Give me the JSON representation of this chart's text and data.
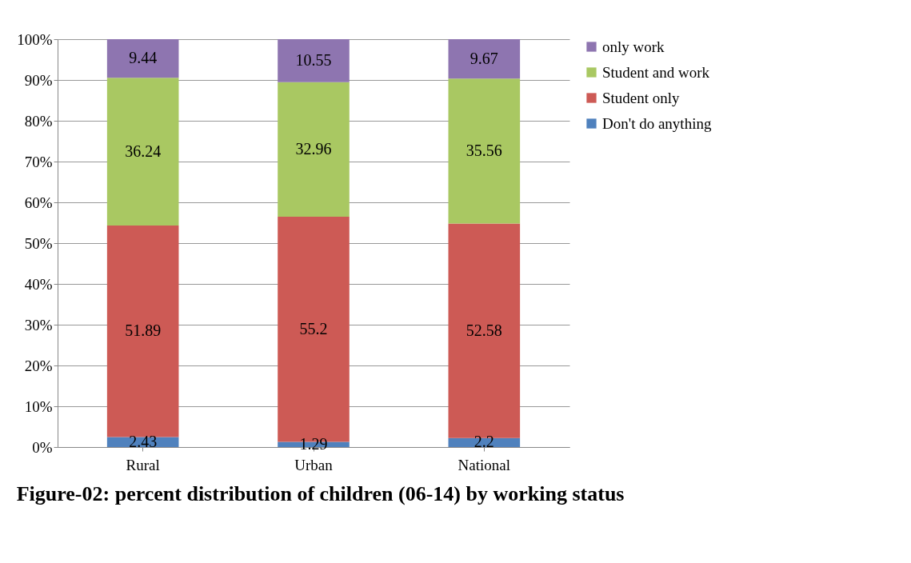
{
  "chart_data": {
    "type": "bar",
    "stacked": true,
    "title": "Figure-02:  percent distribution of children (06-14) by working status",
    "categories": [
      "Rural",
      "Urban",
      "National"
    ],
    "series": [
      {
        "name": "Don't do anything",
        "color": "#4f81bd",
        "values": [
          2.43,
          1.29,
          2.2
        ]
      },
      {
        "name": "Student only",
        "color": "#cd5a55",
        "values": [
          51.89,
          55.2,
          52.58
        ]
      },
      {
        "name": "Student and work",
        "color": "#a9c862",
        "values": [
          36.24,
          32.96,
          35.56
        ]
      },
      {
        "name": "only work",
        "color": "#8e75b0",
        "values": [
          9.44,
          10.55,
          9.67
        ]
      }
    ],
    "ylim": [
      0,
      100
    ],
    "yticks": [
      {
        "value": 0,
        "label": "0%"
      },
      {
        "value": 10,
        "label": "10%"
      },
      {
        "value": 20,
        "label": "20%"
      },
      {
        "value": 30,
        "label": "30%"
      },
      {
        "value": 40,
        "label": "40%"
      },
      {
        "value": 50,
        "label": "50%"
      },
      {
        "value": 60,
        "label": "60%"
      },
      {
        "value": 70,
        "label": "70%"
      },
      {
        "value": 80,
        "label": "80%"
      },
      {
        "value": 90,
        "label": "90%"
      },
      {
        "value": 100,
        "label": "100%"
      }
    ],
    "grid": "y",
    "legend": "right",
    "data_labels": true
  }
}
